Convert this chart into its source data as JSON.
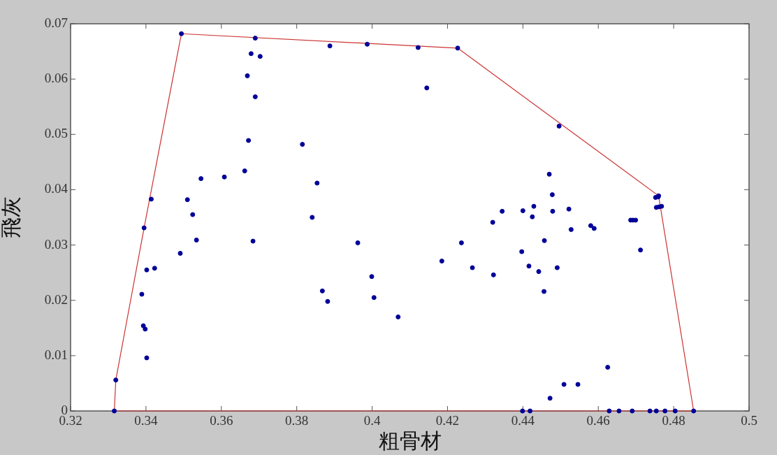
{
  "chart_data": {
    "type": "scatter",
    "xlabel": "粗骨材",
    "ylabel": "飛灰",
    "xlim": [
      0.32,
      0.5
    ],
    "xticks": [
      0.32,
      0.34,
      0.36,
      0.38,
      0.4,
      0.42,
      0.44,
      0.46,
      0.48,
      0.5
    ],
    "ylim": [
      0,
      0.07
    ],
    "yticks": [
      0,
      0.01,
      0.02,
      0.03,
      0.04,
      0.05,
      0.06,
      0.07
    ],
    "grid": false,
    "legend": false,
    "marker": "circle",
    "series": [
      {
        "color": "#000099",
        "x": [
          0.3494,
          0.369,
          0.3679,
          0.3703,
          0.3669,
          0.369,
          0.3672,
          0.3662,
          0.3608,
          0.3546,
          0.3414,
          0.351,
          0.3524,
          0.3395,
          0.3534,
          0.3684,
          0.3491,
          0.3402,
          0.3423,
          0.3389,
          0.3393,
          0.3398,
          0.3402,
          0.332,
          0.3316,
          0.3888,
          0.3987,
          0.4122,
          0.4227,
          0.4145,
          0.3815,
          0.3854,
          0.3841,
          0.432,
          0.4345,
          0.44,
          0.3962,
          0.3999,
          0.4005,
          0.3868,
          0.3882,
          0.4069,
          0.4185,
          0.4237,
          0.4266,
          0.4322,
          0.4397,
          0.4416,
          0.4399,
          0.4419,
          0.4496,
          0.447,
          0.4478,
          0.4429,
          0.4425,
          0.4479,
          0.4522,
          0.458,
          0.4589,
          0.4528,
          0.4686,
          0.4692,
          0.4699,
          0.4752,
          0.4759,
          0.476,
          0.4754,
          0.4761,
          0.4768,
          0.4457,
          0.4442,
          0.4491,
          0.4456,
          0.4712,
          0.4625,
          0.4509,
          0.4546,
          0.4472,
          0.4629,
          0.4655,
          0.469,
          0.4737,
          0.4754,
          0.4777,
          0.4804,
          0.4853
        ],
        "values": [
          0.0682,
          0.0674,
          0.0646,
          0.0641,
          0.0606,
          0.0568,
          0.0489,
          0.0434,
          0.0423,
          0.042,
          0.0383,
          0.0382,
          0.0355,
          0.0331,
          0.0309,
          0.0307,
          0.0285,
          0.0255,
          0.0258,
          0.0211,
          0.0154,
          0.0148,
          0.0096,
          0.0056,
          0,
          0.066,
          0.0663,
          0.0657,
          0.0656,
          0.0584,
          0.0482,
          0.0412,
          0.035,
          0.0341,
          0.0361,
          0.0362,
          0.0304,
          0.0243,
          0.0205,
          0.0217,
          0.0198,
          0.017,
          0.0271,
          0.0304,
          0.0259,
          0.0246,
          0.0288,
          0.0262,
          0,
          0,
          0.0515,
          0.0428,
          0.0391,
          0.037,
          0.0351,
          0.0361,
          0.0365,
          0.0335,
          0.033,
          0.0328,
          0.0345,
          0.0345,
          0.0345,
          0.0386,
          0.0387,
          0.0389,
          0.0368,
          0.0369,
          0.037,
          0.0308,
          0.0252,
          0.0259,
          0.0216,
          0.0291,
          0.0079,
          0.0048,
          0.0048,
          0.0023,
          0,
          0,
          0,
          0,
          0,
          0,
          0,
          0
        ]
      },
      {
        "type": "line",
        "color": "#cc3333",
        "marker": "none",
        "line_style": "solid",
        "x": [
          0.3316,
          0.332,
          0.3395,
          0.3494,
          0.4227,
          0.476,
          0.4853
        ],
        "values": [
          0,
          0.0056,
          0.0331,
          0.0682,
          0.0656,
          0.0389,
          0
        ]
      },
      {
        "type": "line",
        "color": "#cc3333",
        "marker": "none",
        "line_style": "solid",
        "x": [
          0.3316,
          0.4853
        ],
        "values": [
          0,
          0
        ]
      }
    ]
  }
}
